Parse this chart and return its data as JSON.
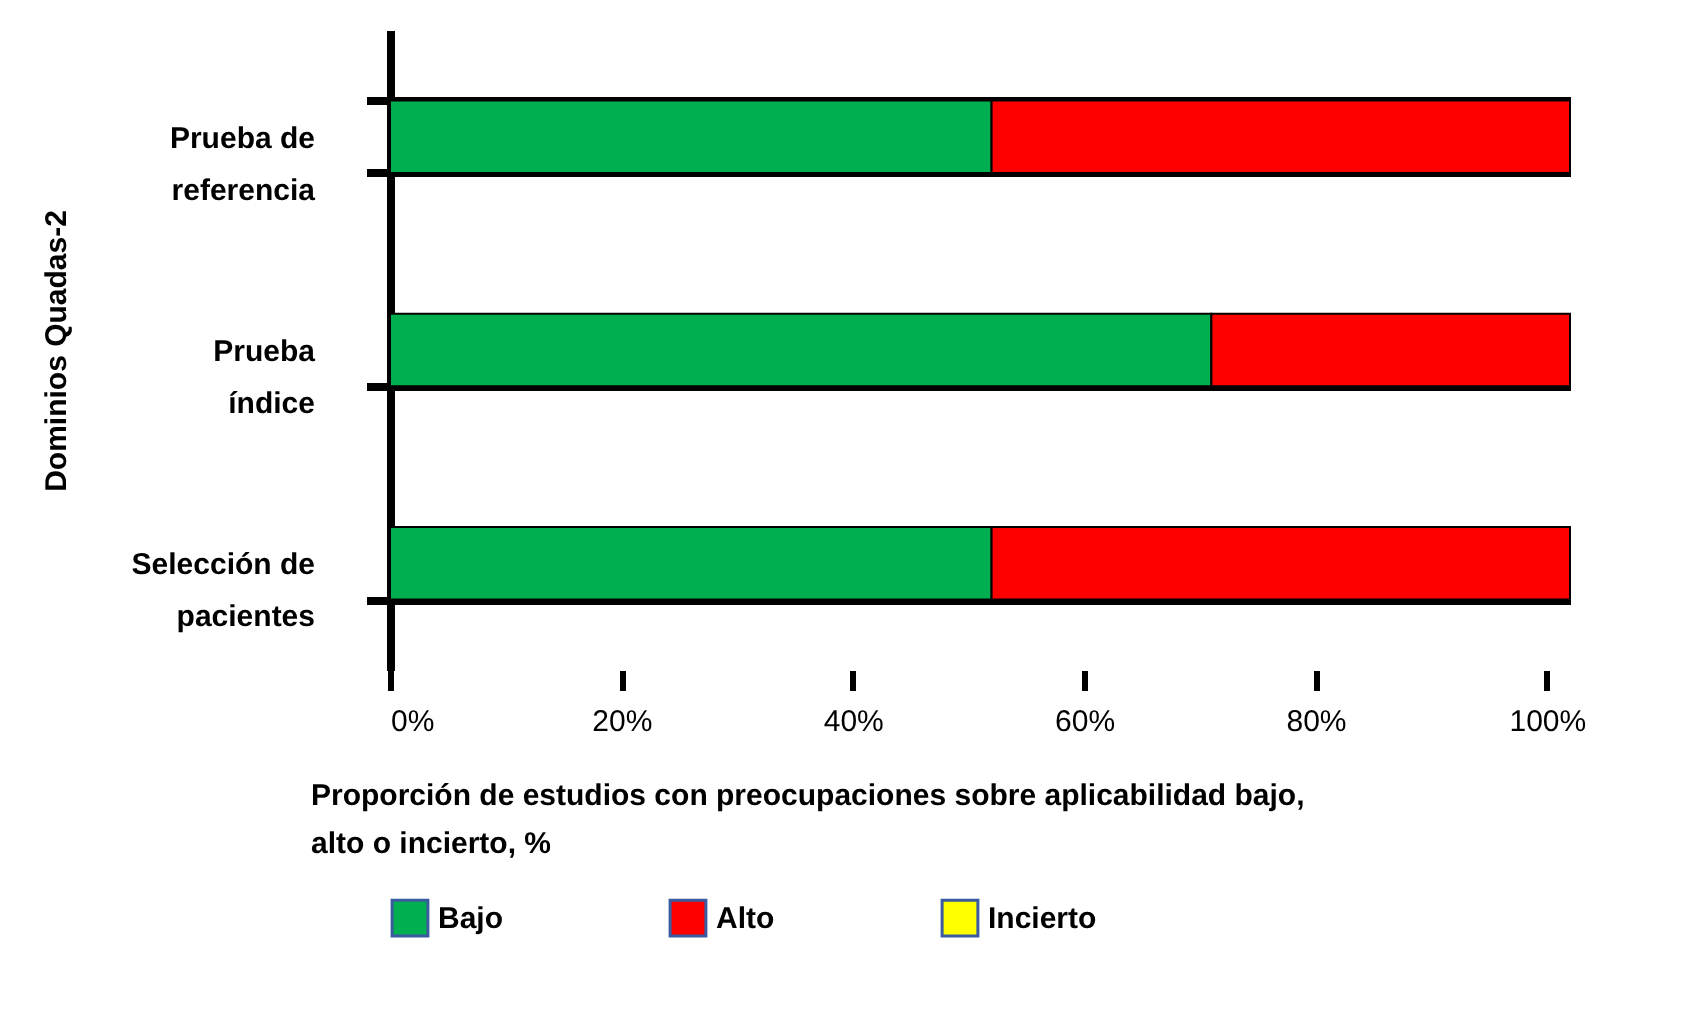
{
  "chart_data": {
    "type": "bar",
    "orientation": "horizontal",
    "stacked": true,
    "categories": [
      "Prueba de referencia",
      "Prueba índice",
      "Selección de pacientes"
    ],
    "series": [
      {
        "name": "Bajo",
        "color": "#00b050",
        "values": [
          52,
          71,
          52
        ]
      },
      {
        "name": "Alto",
        "color": "#ff0000",
        "values": [
          50,
          31,
          50
        ]
      },
      {
        "name": "Incierto",
        "color": "#ffff00",
        "values": [
          null,
          null,
          null
        ]
      }
    ],
    "xlim": [
      0,
      102
    ],
    "xticks": [
      {
        "value": 0,
        "label": "0%"
      },
      {
        "value": 20,
        "label": "20%"
      },
      {
        "value": 40,
        "label": "40%"
      },
      {
        "value": 60,
        "label": "60%"
      },
      {
        "value": 80,
        "label": "80%"
      },
      {
        "value": 100,
        "label": "100%"
      }
    ],
    "xlabel": "Proporción de estudios con preocupaciones sobre aplicabilidad bajo, alto o incierto, %",
    "ylabel": "Dominios Quadas-2",
    "grid": "y",
    "legend": "bottom"
  }
}
